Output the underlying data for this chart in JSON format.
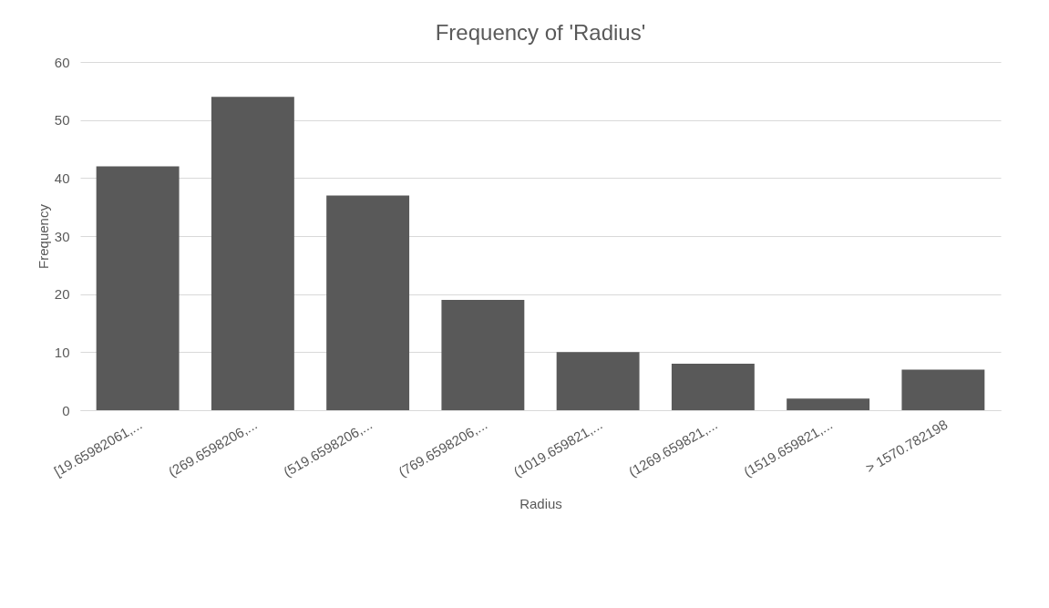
{
  "chart_data": {
    "type": "bar",
    "title": "Frequency of 'Radius'",
    "xlabel": "Radius",
    "ylabel": "Frequency",
    "categories": [
      "[19.65982061,...",
      "(269.6598206,...",
      "(519.6598206,...",
      "(769.6598206,...",
      "(1019.659821,...",
      "(1269.659821,...",
      "(1519.659821,...",
      "> 1570.782198"
    ],
    "values": [
      42,
      54,
      37,
      19,
      10,
      8,
      2,
      7
    ],
    "color": "#595959",
    "ylim": [
      0,
      60
    ],
    "yticks": [
      0,
      10,
      20,
      30,
      40,
      50,
      60
    ],
    "grid": "y"
  }
}
